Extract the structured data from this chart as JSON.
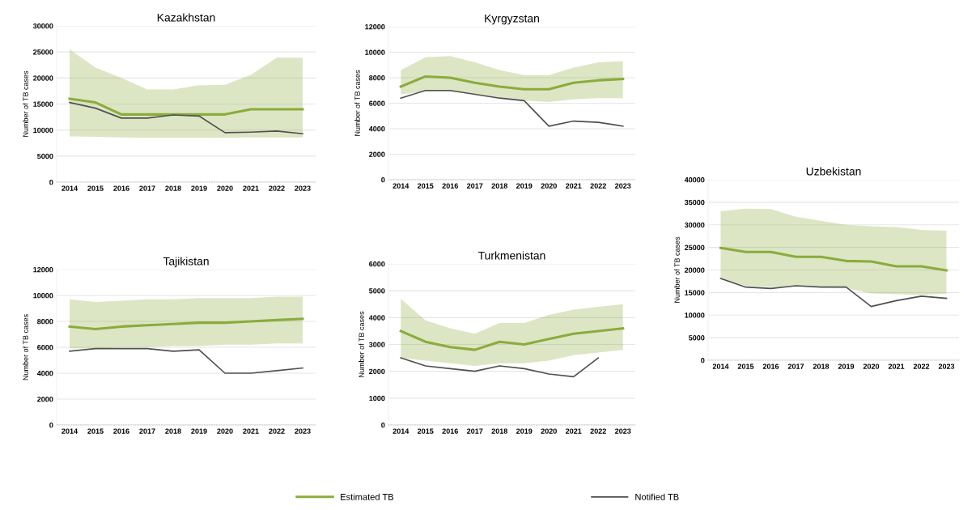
{
  "chart_data": [
    {
      "type": "line",
      "title": "Kazakhstan",
      "ylabel": "Number of TB cases",
      "categories": [
        "2014",
        "2015",
        "2016",
        "2017",
        "2018",
        "2019",
        "2020",
        "2021",
        "2022",
        "2023"
      ],
      "ylim": [
        0,
        30000
      ],
      "yticks": [
        0,
        5000,
        10000,
        15000,
        20000,
        25000,
        30000
      ],
      "grid": "y",
      "legend": "bottom",
      "series": [
        {
          "name": "Estimated TB",
          "color": "#8aac3c",
          "values": [
            16000,
            15300,
            13000,
            13000,
            13000,
            13000,
            13000,
            14000,
            14000,
            14000
          ],
          "lower": [
            8800,
            8700,
            8600,
            8500,
            8500,
            8500,
            8500,
            8600,
            8600,
            8600
          ],
          "upper": [
            25500,
            22000,
            20000,
            17800,
            17800,
            18600,
            18700,
            20600,
            23900,
            23900
          ]
        },
        {
          "name": "Notified TB",
          "color": "#505050",
          "values": [
            15300,
            14200,
            12300,
            12300,
            12900,
            12700,
            9500,
            9600,
            9800,
            9300
          ]
        }
      ]
    },
    {
      "type": "line",
      "title": "Kyrgyzstan",
      "ylabel": "Number of TB cases",
      "categories": [
        "2014",
        "2015",
        "2016",
        "2017",
        "2018",
        "2019",
        "2020",
        "2021",
        "2022",
        "2023"
      ],
      "ylim": [
        0,
        12000
      ],
      "yticks": [
        0,
        2000,
        4000,
        6000,
        8000,
        10000,
        12000
      ],
      "grid": "y",
      "series": [
        {
          "color": "#8aac3c",
          "values": [
            7300,
            8100,
            8000,
            7600,
            7300,
            7100,
            7100,
            7600,
            7800,
            7900
          ],
          "lower": [
            6700,
            6900,
            6900,
            6700,
            6400,
            6200,
            6100,
            6300,
            6400,
            6400
          ],
          "upper": [
            8600,
            9600,
            9700,
            9200,
            8600,
            8200,
            8200,
            8800,
            9200,
            9300
          ]
        },
        {
          "color": "#505050",
          "values": [
            6400,
            7000,
            7000,
            6700,
            6400,
            6200,
            4200,
            4600,
            4500,
            4200
          ]
        }
      ]
    },
    {
      "type": "line",
      "title": "Uzbekistan",
      "ylabel": "Number of TB cases",
      "categories": [
        "2014",
        "2015",
        "2016",
        "2017",
        "2018",
        "2019",
        "2020",
        "2021",
        "2022",
        "2023"
      ],
      "ylim": [
        0,
        40000
      ],
      "yticks": [
        0,
        5000,
        10000,
        15000,
        20000,
        25000,
        30000,
        35000,
        40000
      ],
      "grid": "y",
      "series": [
        {
          "color": "#8aac3c",
          "values": [
            24900,
            24000,
            24000,
            22900,
            22900,
            22000,
            21900,
            20800,
            20800,
            19900
          ],
          "lower": [
            18000,
            16500,
            16200,
            16500,
            16200,
            16000,
            14800,
            14600,
            14500,
            14700
          ],
          "upper": [
            33000,
            33600,
            33500,
            31800,
            30900,
            30000,
            29700,
            29500,
            28900,
            28700
          ]
        },
        {
          "color": "#505050",
          "values": [
            18100,
            16200,
            15900,
            16500,
            16200,
            16200,
            11900,
            13200,
            14200,
            13700
          ]
        }
      ]
    },
    {
      "type": "line",
      "title": "Tajikistan",
      "ylabel": "Number of TB cases",
      "categories": [
        "2014",
        "2015",
        "2016",
        "2017",
        "2018",
        "2019",
        "2020",
        "2021",
        "2022",
        "2023"
      ],
      "ylim": [
        0,
        12000
      ],
      "yticks": [
        0,
        2000,
        4000,
        6000,
        8000,
        10000,
        12000
      ],
      "grid": "y",
      "series": [
        {
          "color": "#8aac3c",
          "values": [
            7600,
            7400,
            7600,
            7700,
            7800,
            7900,
            7900,
            8000,
            8100,
            8200
          ],
          "lower": [
            5900,
            5900,
            6000,
            6000,
            6100,
            6100,
            6200,
            6200,
            6300,
            6300
          ],
          "upper": [
            9700,
            9500,
            9600,
            9700,
            9700,
            9800,
            9800,
            9800,
            9900,
            9900
          ]
        },
        {
          "color": "#505050",
          "values": [
            5700,
            5900,
            5900,
            5900,
            5700,
            5800,
            4000,
            4000,
            4200,
            4400
          ]
        }
      ]
    },
    {
      "type": "line",
      "title": "Turkmenistan",
      "ylabel": "Number of TB cases",
      "categories": [
        "2014",
        "2015",
        "2016",
        "2017",
        "2018",
        "2019",
        "2020",
        "2021",
        "2022",
        "2023"
      ],
      "ylim": [
        0,
        6000
      ],
      "yticks": [
        0,
        1000,
        2000,
        3000,
        4000,
        5000,
        6000
      ],
      "grid": "y",
      "series": [
        {
          "color": "#8aac3c",
          "values": [
            3500,
            3100,
            2900,
            2800,
            3100,
            3000,
            3200,
            3400,
            3500,
            3600
          ],
          "lower": [
            2500,
            2400,
            2300,
            2200,
            2300,
            2300,
            2400,
            2600,
            2700,
            2800
          ],
          "upper": [
            4700,
            3900,
            3600,
            3400,
            3800,
            3800,
            4100,
            4300,
            4400,
            4500
          ]
        },
        {
          "color": "#505050",
          "values": [
            2500,
            2200,
            2100,
            2000,
            2200,
            2100,
            1900,
            1800,
            2500,
            null
          ]
        }
      ]
    }
  ]
}
